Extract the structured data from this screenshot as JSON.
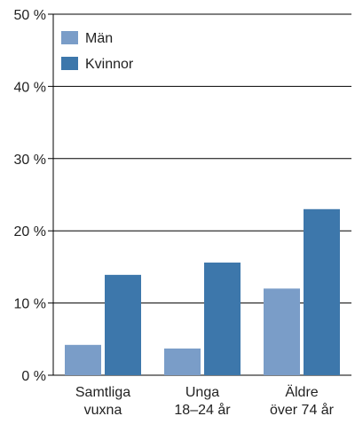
{
  "chart_data": {
    "type": "bar",
    "categories": [
      [
        "Samtliga",
        "vuxna"
      ],
      [
        "Unga",
        "18–24 år"
      ],
      [
        "Äldre",
        "över 74 år"
      ]
    ],
    "series": [
      {
        "name": "Män",
        "values": [
          4.2,
          3.7,
          12.0
        ],
        "color": "#7a9dc8"
      },
      {
        "name": "Kvinnor",
        "values": [
          13.9,
          15.6,
          23.0
        ],
        "color": "#3d77ab"
      }
    ],
    "ylim": [
      0,
      50
    ],
    "yticks": [
      0,
      10,
      20,
      30,
      40,
      50
    ],
    "ytick_labels": [
      "0 %",
      "10 %",
      "20 %",
      "30 %",
      "40 %",
      "50 %"
    ],
    "grid": true,
    "legend_position": "top-left"
  }
}
